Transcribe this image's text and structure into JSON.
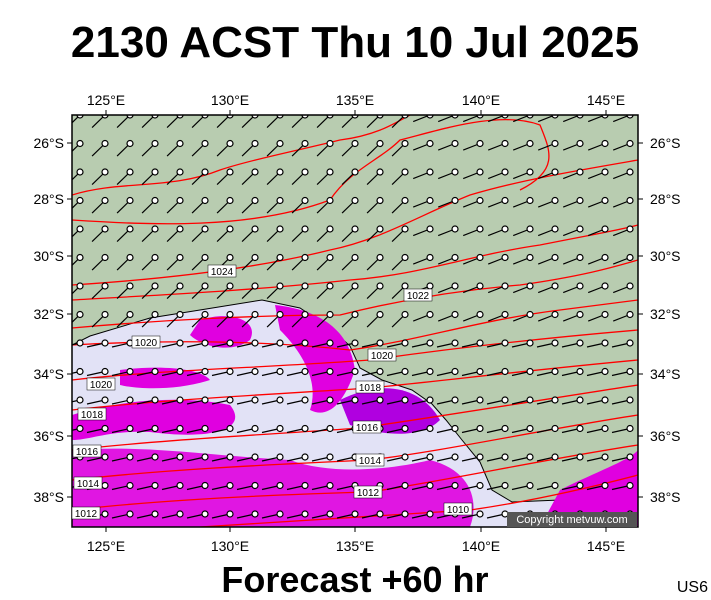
{
  "header": {
    "title": "2130 ACST Thu 10 Jul 2025"
  },
  "map": {
    "lon_labels": [
      "125°E",
      "130°E",
      "135°E",
      "140°E",
      "145°E"
    ],
    "lat_labels": [
      "26°S",
      "28°S",
      "30°S",
      "32°S",
      "34°S",
      "36°S",
      "38°S"
    ],
    "isobar_labels": [
      "1024",
      "1022",
      "1020",
      "1020",
      "1020",
      "1018",
      "1018",
      "1016",
      "1016",
      "1014",
      "1014",
      "1012",
      "1012",
      "1010"
    ],
    "copyright": "Copyright metvuw.com"
  },
  "footer": {
    "forecast": "Forecast +60 hr",
    "code": "US6"
  }
}
